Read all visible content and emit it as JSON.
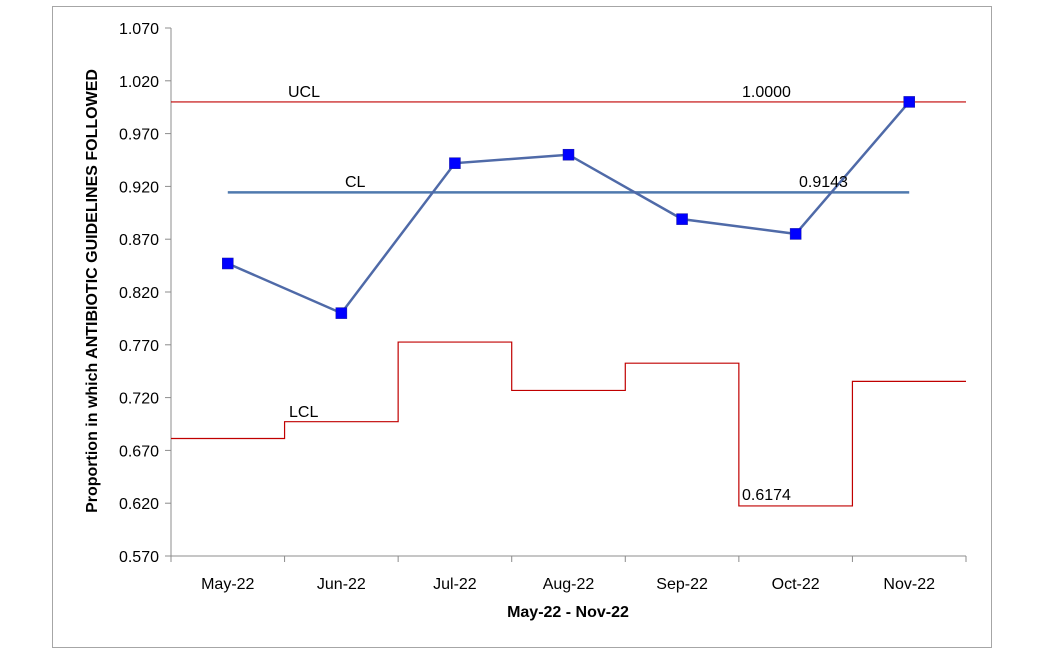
{
  "chart_data": {
    "type": "line",
    "title": "",
    "xlabel": "May-22 - Nov-22",
    "ylabel": "Proportion in which ANTIBIOTIC GUIDELINES FOLLOWED",
    "categories": [
      "May-22",
      "Jun-22",
      "Jul-22",
      "Aug-22",
      "Sep-22",
      "Oct-22",
      "Nov-22"
    ],
    "yticks": [
      "0.570",
      "0.620",
      "0.670",
      "0.720",
      "0.770",
      "0.820",
      "0.870",
      "0.920",
      "0.970",
      "1.020",
      "1.070"
    ],
    "ylim": [
      0.57,
      1.07
    ],
    "grid": false,
    "series": [
      {
        "values": [
          0.847,
          0.8,
          0.942,
          0.95,
          0.889,
          0.875,
          1.0
        ],
        "color": "#0000ff",
        "line_color": "#4f6aa8",
        "marker": "square"
      }
    ],
    "center_line": {
      "label": "CL",
      "value": 0.9143,
      "value_label": "0.9143",
      "color": "#4f79ae"
    },
    "ucl": {
      "label": "UCL",
      "values": [
        1.0,
        1.0,
        1.0,
        1.0,
        1.0,
        1.0,
        1.0
      ],
      "value_label": "1.0000",
      "color": "#c00000"
    },
    "lcl": {
      "label": "LCL",
      "values": [
        0.6813,
        0.6972,
        0.7726,
        0.7268,
        0.7526,
        0.6174,
        0.7354
      ],
      "value_label": "0.6174",
      "color": "#c00000"
    }
  }
}
